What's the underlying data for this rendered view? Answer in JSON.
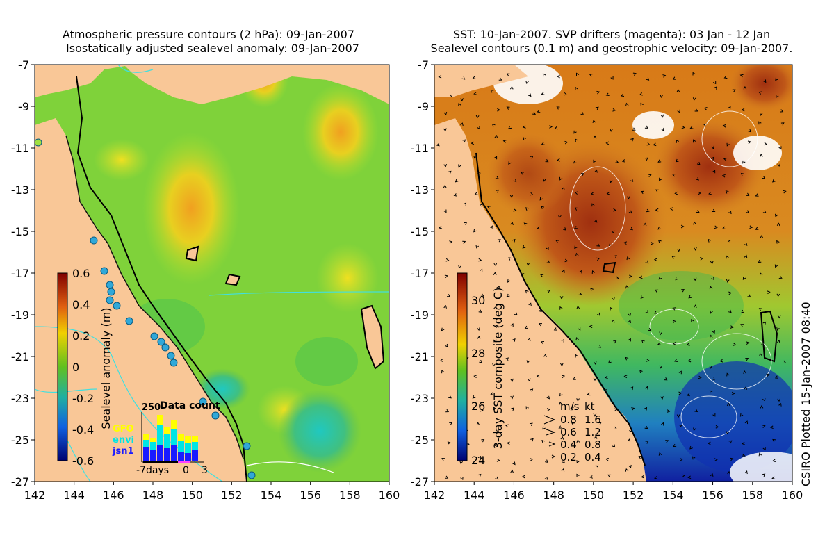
{
  "left_panel": {
    "title_line1": "Atmospheric pressure contours (2 hPa): 09-Jan-2007",
    "title_line2": "Isostatically adjusted sealevel anomaly: 09-Jan-2007",
    "colorbar_label": "Sealevel anomaly (m)",
    "colorbar_ticks": [
      "0.6",
      "0.4",
      "0.2",
      "0",
      "-0.2",
      "-0.4",
      "-0.6"
    ],
    "inset": {
      "title": "Data count",
      "ymax_label": "250",
      "legend": [
        {
          "label": "GFO",
          "color": "#ffff00"
        },
        {
          "label": "envi",
          "color": "#00e5e5"
        },
        {
          "label": "jsn1",
          "color": "#1a1aff"
        }
      ],
      "xlabel_left": "-7days",
      "xlabel_mid": "0",
      "xlabel_right": "3"
    }
  },
  "right_panel": {
    "title_line1": "SST: 10-Jan-2007. SVP drifters (magenta): 03 Jan - 12 Jan",
    "title_line2": "Sealevel contours (0.1 m) and geostrophic velocity: 09-Jan-2007.",
    "colorbar_label": "3-day SST composite (deg C)",
    "colorbar_ticks": [
      "30",
      "28",
      "26",
      "24"
    ],
    "vector_legend": {
      "header_ms": "m/s",
      "header_kt": "kt",
      "rows": [
        {
          "ms": "0.8",
          "kt": "1.6"
        },
        {
          "ms": "0.6",
          "kt": "1.2"
        },
        {
          "ms": "0.4",
          "kt": "0.8"
        },
        {
          "ms": "0.2",
          "kt": "0.4"
        }
      ]
    }
  },
  "axes": {
    "x_ticks": [
      "142",
      "144",
      "146",
      "148",
      "150",
      "152",
      "154",
      "156",
      "158",
      "160"
    ],
    "y_ticks": [
      "-7",
      "-9",
      "-11",
      "-13",
      "-15",
      "-17",
      "-19",
      "-21",
      "-23",
      "-25",
      "-27"
    ]
  },
  "credit": "CSIRO Plotted 15-Jan-2007 08:40",
  "colors": {
    "land": "#f9c797",
    "ocean_green": "#7fd23a",
    "sst_orange": "#e08a1c",
    "sst_red": "#b04010",
    "contour_cyan": "#40e0e0"
  }
}
